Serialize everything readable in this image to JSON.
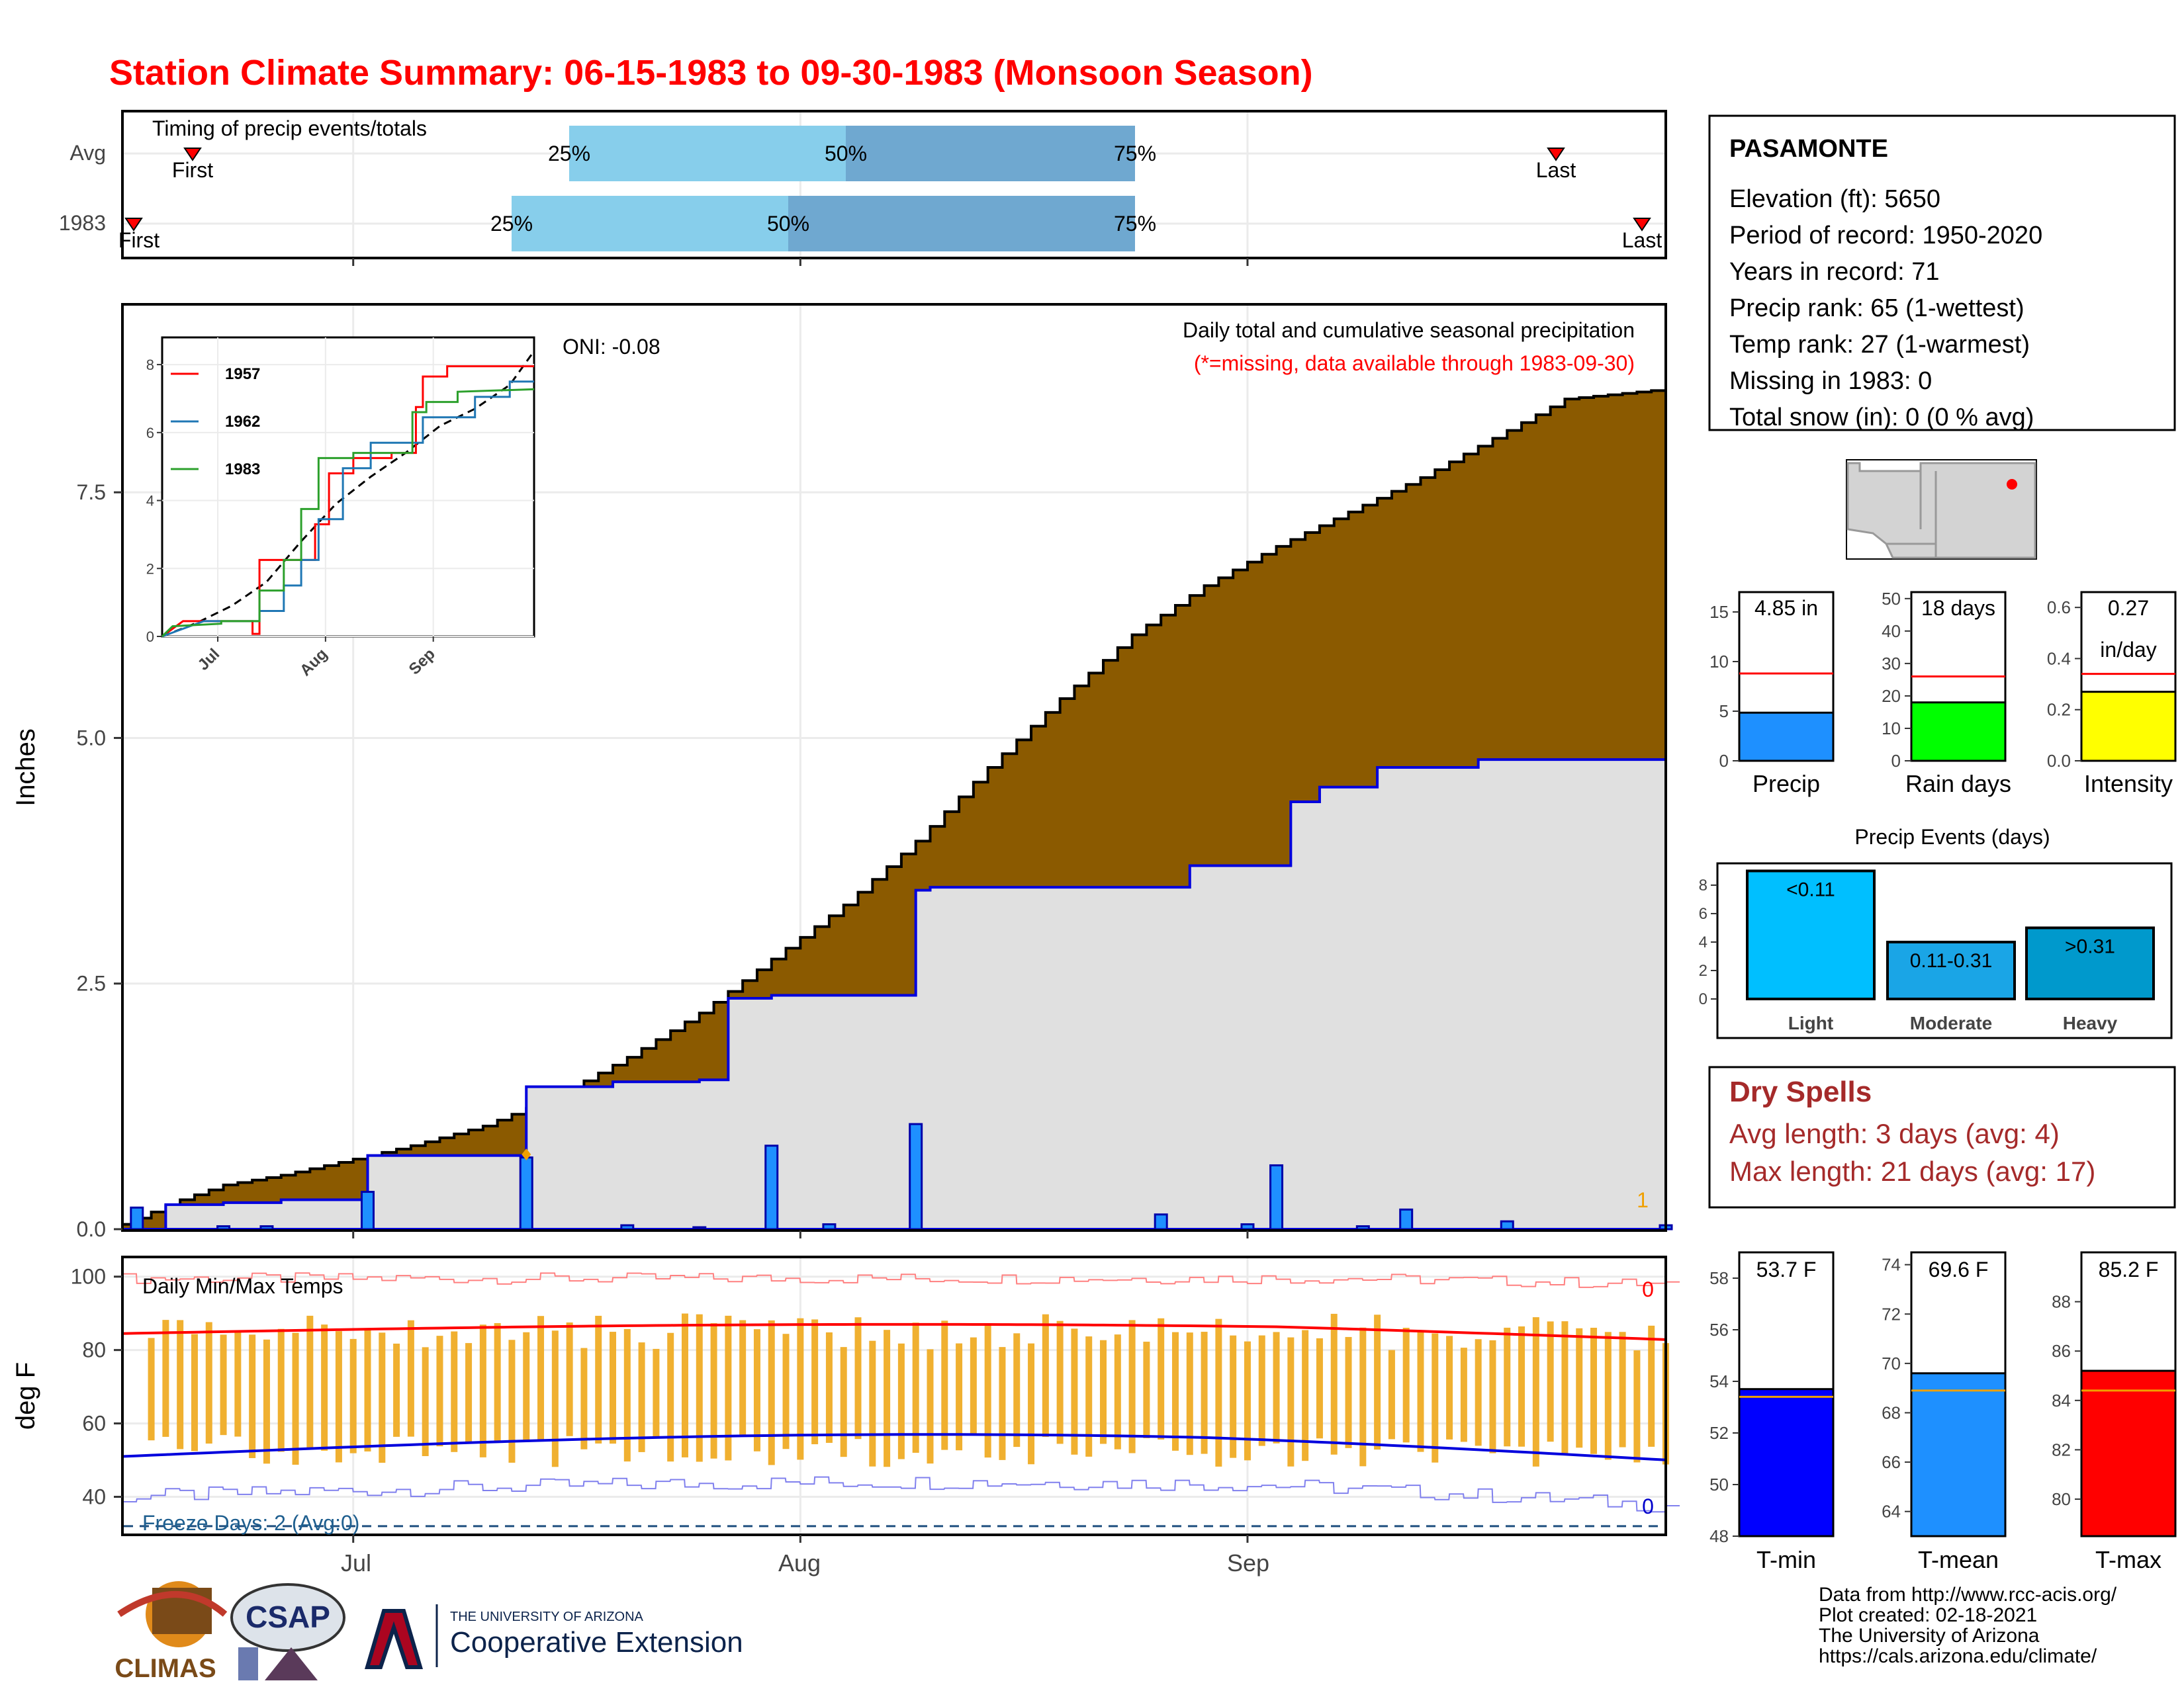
{
  "title": "Station Climate Summary: 06-15-1983 to 09-30-1983 (Monsoon Season)",
  "colors": {
    "title": "#ff0000",
    "cum_fill": "#8B5A00",
    "year_fill": "#e0e0e0",
    "daily_bar": "#1E90FF",
    "tmax_line": "#ff0000",
    "tmin_line": "#0000dd",
    "temp_bar": "#f0b030",
    "light": "#00bfff",
    "moderate": "#1aa5e6",
    "heavy": "#0099cc",
    "dry": "#a52a2a",
    "precip_bar": "#1E90FF",
    "raindays_bar": "#00ff00",
    "intensity_bar": "#ffff00",
    "tmin_bar": "#0000ff",
    "tmean_bar": "#1E90FF",
    "tmax_bar": "#ff0000"
  },
  "timing": {
    "label": "Timing of precip events/totals",
    "rows": [
      {
        "name": "Avg",
        "first_label": "First",
        "last_label": "Last",
        "p25": "25%",
        "p50": "50%",
        "p75": "75%"
      },
      {
        "name": "1983",
        "first_label": "First",
        "last_label": "Last",
        "p25": "25%",
        "p50": "50%",
        "p75": "75%"
      }
    ]
  },
  "main": {
    "ylabel": "Inches",
    "caption": "Daily total and cumulative seasonal precipitation",
    "missing_note": "(*=missing, data available through 1983-09-30)",
    "oni": "ONI: -0.08",
    "missing_count": "1",
    "yticks": [
      "0.0",
      "2.5",
      "5.0",
      "7.5"
    ]
  },
  "inset": {
    "yticks": [
      "0",
      "2",
      "4",
      "6",
      "8"
    ],
    "xticks": [
      "Jul",
      "Aug",
      "Sep"
    ],
    "legend": [
      "1957",
      "1962",
      "1983"
    ]
  },
  "temps": {
    "label": "Daily Min/Max Temps",
    "ylabel": "deg F",
    "yticks": [
      "40",
      "60",
      "80",
      "100"
    ],
    "freeze": "Freeze Days: 2 (Avg:0)",
    "max_count": "0",
    "min_count": "0",
    "xticks": [
      "Jul",
      "Aug",
      "Sep"
    ]
  },
  "station": {
    "name": "PASAMONTE",
    "lines": [
      "Elevation (ft): 5650",
      "Period of record: 1950-2020",
      "Years in record: 71",
      "Precip rank: 65 (1-wettest)",
      "Temp rank: 27 (1-warmest)",
      "Missing in 1983: 0",
      "Total snow (in): 0 (0 % avg)"
    ]
  },
  "summary_bars": [
    {
      "label": "Precip",
      "value_text": "4.85 in",
      "value": 4.85,
      "avg": 8.8,
      "yticks": [
        "0",
        "5",
        "10",
        "15"
      ],
      "max": 17
    },
    {
      "label": "Rain days",
      "value_text": "18 days",
      "value": 18,
      "avg": 26,
      "yticks": [
        "0",
        "10",
        "20",
        "30",
        "40",
        "50"
      ],
      "max": 52
    },
    {
      "label": "Intensity",
      "value_text": "0.27",
      "value_text2": "in/day",
      "value": 0.27,
      "avg": 0.34,
      "yticks": [
        "0.0",
        "0.2",
        "0.4",
        "0.6"
      ],
      "max": 0.66
    }
  ],
  "events": {
    "title": "Precip Events (days)",
    "yticks": [
      "0",
      "2",
      "4",
      "6",
      "8"
    ],
    "bars": [
      {
        "label": "Light",
        "text": "<0.11",
        "value": 9
      },
      {
        "label": "Moderate",
        "text": "0.11-0.31",
        "value": 4
      },
      {
        "label": "Heavy",
        "text": ">0.31",
        "value": 5
      }
    ]
  },
  "dry": {
    "title": "Dry Spells",
    "avg_line": "Avg length: 3 days (avg: 4)",
    "max_line": "Max length: 21 days (avg: 17)"
  },
  "temp_bars": [
    {
      "label": "T-min",
      "value_text": "53.7 F",
      "value": 53.7,
      "avg": 53.4,
      "lo": 48,
      "hi": 59,
      "yticks": [
        "48",
        "50",
        "52",
        "54",
        "56",
        "58"
      ]
    },
    {
      "label": "T-mean",
      "value_text": "69.6 F",
      "value": 69.6,
      "avg": 68.9,
      "lo": 63,
      "hi": 74.5,
      "yticks": [
        "64",
        "66",
        "68",
        "70",
        "72",
        "74"
      ]
    },
    {
      "label": "T-max",
      "value_text": "85.2 F",
      "value": 85.2,
      "avg": 84.4,
      "lo": 78.5,
      "hi": 90,
      "yticks": [
        "80",
        "82",
        "84",
        "86",
        "88"
      ]
    }
  ],
  "credits": [
    "Data from http://www.rcc-acis.org/",
    "Plot created: 02-18-2021",
    "The University of Arizona",
    "https://cals.arizona.edu/climate/"
  ],
  "logos": {
    "climas": "CLIMAS",
    "csap": "CSAP",
    "ua_small": "THE UNIVERSITY OF ARIZONA",
    "ua_big": "Cooperative Extension"
  },
  "chart_data": {
    "type": "area",
    "x_range": [
      "1983-06-15",
      "1983-09-30"
    ],
    "ylim": [
      0,
      9.4
    ],
    "series": [
      {
        "name": "",
        "x": [
          "06-15",
          "06-19",
          "06-22",
          "06-26",
          "06-30",
          "07-05",
          "07-10",
          "07-15",
          "07-20",
          "07-25",
          "07-30",
          "08-04",
          "08-09",
          "08-14",
          "08-19",
          "08-24",
          "08-29",
          "09-03",
          "09-08",
          "09-13",
          "09-18",
          "09-23",
          "09-30"
        ],
        "values": [
          0.05,
          0.3,
          0.45,
          0.55,
          0.68,
          0.85,
          1.05,
          1.35,
          1.75,
          2.2,
          2.75,
          3.3,
          3.95,
          4.7,
          5.4,
          6.05,
          6.55,
          6.95,
          7.3,
          7.65,
          8.05,
          8.45,
          8.55
        ]
      },
      {
        "name": "",
        "x": [
          "06-15",
          "06-18",
          "06-19",
          "06-22",
          "06-26",
          "06-30",
          "07-02",
          "07-12",
          "07-13",
          "07-19",
          "07-25",
          "07-27",
          "07-30",
          "08-09",
          "08-10",
          "08-28",
          "09-04",
          "09-06",
          "09-10",
          "09-17",
          "09-30"
        ],
        "values": [
          0.0,
          0.25,
          0.25,
          0.27,
          0.3,
          0.3,
          0.75,
          0.75,
          1.45,
          1.5,
          1.52,
          2.35,
          2.38,
          3.45,
          3.48,
          3.7,
          4.35,
          4.5,
          4.7,
          4.78,
          4.85
        ]
      }
    ],
    "daily_precip": {
      "x": [
        "06-16",
        "06-22",
        "06-25",
        "07-02",
        "07-13",
        "07-20",
        "07-25",
        "07-30",
        "08-03",
        "08-09",
        "08-26",
        "09-01",
        "09-03",
        "09-09",
        "09-12",
        "09-19",
        "09-30"
      ],
      "values": [
        0.22,
        0.03,
        0.03,
        0.38,
        0.73,
        0.04,
        0.02,
        0.85,
        0.05,
        1.07,
        0.15,
        0.05,
        0.65,
        0.03,
        0.2,
        0.08,
        0.04
      ]
    },
    "temperature_ylim": [
      30,
      105
    ],
    "inset_years": [
      "1957",
      "1962",
      "1983"
    ]
  }
}
